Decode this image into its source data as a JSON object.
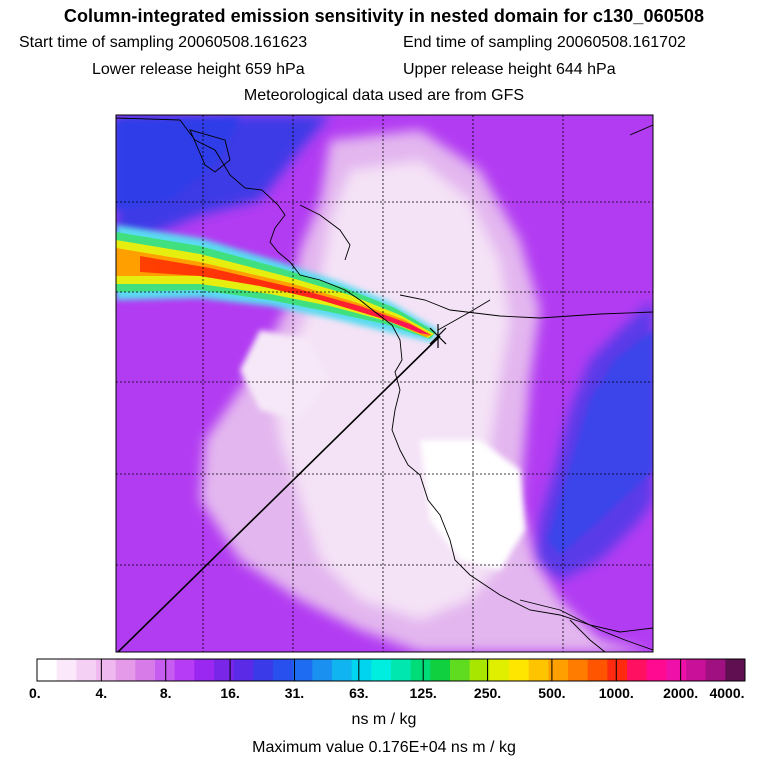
{
  "header": {
    "title": "Column-integrated emission sensitivity in nested domain for c130_060508",
    "start_label": "Start time of sampling 20060508.161623",
    "end_label": "End time of sampling 20060508.161702",
    "lower_label": "Lower release height  659 hPa",
    "upper_label": "Upper release height  644 hPa",
    "met_label": "Meteorological data used are from GFS"
  },
  "colorbar": {
    "ticks": [
      "0.",
      "4.",
      "8.",
      "16.",
      "31.",
      "63.",
      "125.",
      "250.",
      "500.",
      "1000.",
      "2000.",
      "4000."
    ],
    "units": "ns m / kg",
    "colors": [
      "#ffffff",
      "#fbe8fb",
      "#f5d0f5",
      "#efb8ef",
      "#e49ae9",
      "#d77be8",
      "#c65cf0",
      "#b63cf5",
      "#9a28f0",
      "#7a26e8",
      "#5a2ae6",
      "#3a3ae8",
      "#2850ee",
      "#1e6cf2",
      "#1a90f0",
      "#10b4f0",
      "#00d4ee",
      "#00eee0",
      "#00e8b0",
      "#00dc78",
      "#10d040",
      "#60dc20",
      "#a8e600",
      "#e0ee00",
      "#ffe600",
      "#ffc400",
      "#ffa000",
      "#ff7c00",
      "#ff5400",
      "#ff2a10",
      "#ff1060",
      "#ff0a90",
      "#ee10a8",
      "#c81098",
      "#a01080",
      "#601050"
    ]
  },
  "footer": {
    "max_label": "Maximum value  0.176E+04 ns m / kg"
  },
  "colors": {
    "plume_core": "#ff3000",
    "background_purple": "#b23cf2",
    "light_region": "#f4e2f6"
  }
}
